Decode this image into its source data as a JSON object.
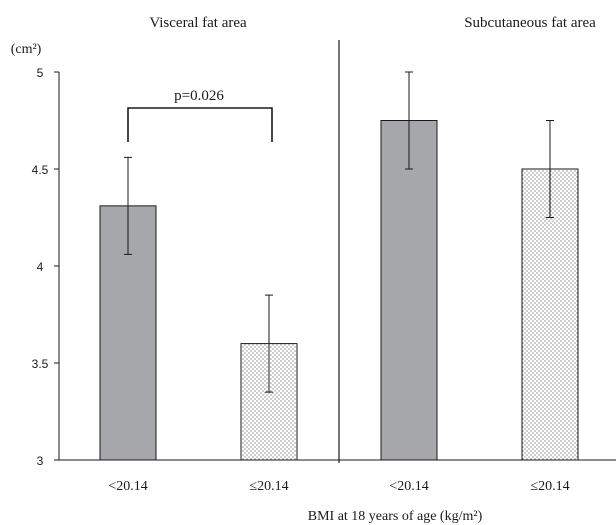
{
  "chart_data": {
    "type": "bar",
    "unit_label": "(cm²)",
    "xlabel": "BMI at 18 years of age (kg/m²)",
    "ylim": [
      3,
      5
    ],
    "yticks": [
      3,
      3.5,
      4,
      4.5,
      5
    ],
    "ytick_labels": [
      "3",
      "3.5",
      "4",
      "4.5",
      "5"
    ],
    "grid": false,
    "panels": [
      {
        "title": "Visceral fat area",
        "categories": [
          "<20.14",
          "≤20.14"
        ],
        "values": [
          4.31,
          3.6
        ],
        "error": [
          0.25,
          0.25
        ],
        "annotation": "p=0.026"
      },
      {
        "title": "Subcutaneous fat area",
        "categories": [
          "<20.14",
          "≤20.14"
        ],
        "values": [
          4.75,
          4.5
        ],
        "error": [
          0.25,
          0.25
        ]
      }
    ],
    "colors": {
      "solid_fill": "#a6a7aa",
      "dotted_background": "#ffffff",
      "dot_color": "#555555",
      "stroke": "#1a1a1a"
    }
  }
}
